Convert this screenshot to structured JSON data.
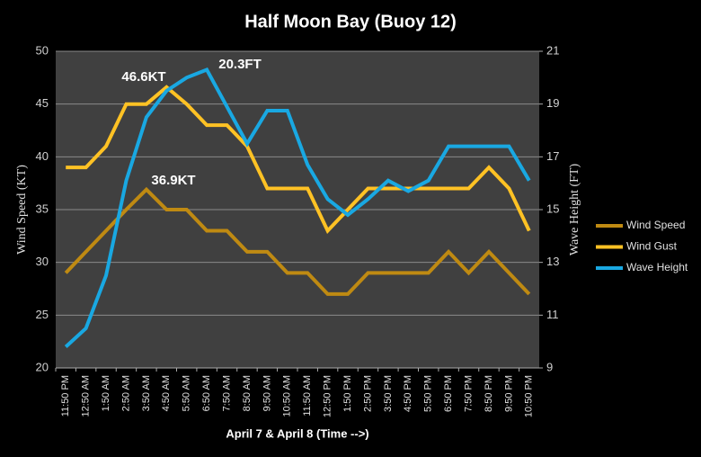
{
  "chart_data": {
    "type": "line",
    "title": "Half Moon Bay (Buoy 12)",
    "x_label": "April 7 & April 8 (Time -->)",
    "y_label": "Wind Speed (KT)",
    "y2_label": "Wave Height (FT)",
    "categories": [
      "11:50 PM",
      "12:50 AM",
      "1:50 AM",
      "2:50 AM",
      "3:50 AM",
      "4:50 AM",
      "5:50 AM",
      "6:50 AM",
      "7:50 AM",
      "8:50 AM",
      "9:50 AM",
      "10:50 AM",
      "11:50 AM",
      "12:50 PM",
      "1:50 PM",
      "2:50 PM",
      "3:50 PM",
      "4:50 PM",
      "5:50 PM",
      "6:50 PM",
      "7:50 PM",
      "8:50 PM",
      "9:50 PM",
      "10:50 PM"
    ],
    "series": [
      {
        "name": "Wind Speed",
        "color": "#bf8a12",
        "values": [
          29,
          31,
          33,
          35,
          36.9,
          35,
          35,
          33,
          33,
          31,
          31,
          29,
          29,
          27,
          27,
          29,
          29,
          29,
          29,
          31,
          29,
          31,
          29,
          27
        ]
      },
      {
        "name": "Wind Gust",
        "color": "#ffc224",
        "values": [
          39,
          39,
          41,
          45,
          45,
          46.6,
          45,
          43,
          43,
          41,
          37,
          37,
          37,
          33,
          35,
          37,
          37,
          37,
          37,
          37,
          37,
          39,
          37,
          33
        ]
      },
      {
        "name": "Wave Height",
        "color": "#19a8e2",
        "axis": "y2",
        "values": [
          9.8,
          10.5,
          12.5,
          16.1,
          18.5,
          19.5,
          20,
          20.3,
          18.9,
          17.5,
          18.75,
          18.75,
          16.7,
          15.4,
          14.8,
          15.4,
          16.1,
          15.7,
          16.1,
          17.4,
          17.4,
          17.4,
          17.4,
          16.1
        ]
      }
    ],
    "annotations": [
      "46.6KT",
      "20.3FT",
      "36.9KT"
    ],
    "ylim": [
      20,
      50
    ],
    "yticks": [
      20,
      25,
      30,
      35,
      40,
      45,
      50
    ],
    "y2lim": [
      9,
      21
    ],
    "y2ticks": [
      9,
      11,
      13,
      15,
      17,
      19,
      21
    ],
    "grid": true,
    "legend": "right"
  }
}
